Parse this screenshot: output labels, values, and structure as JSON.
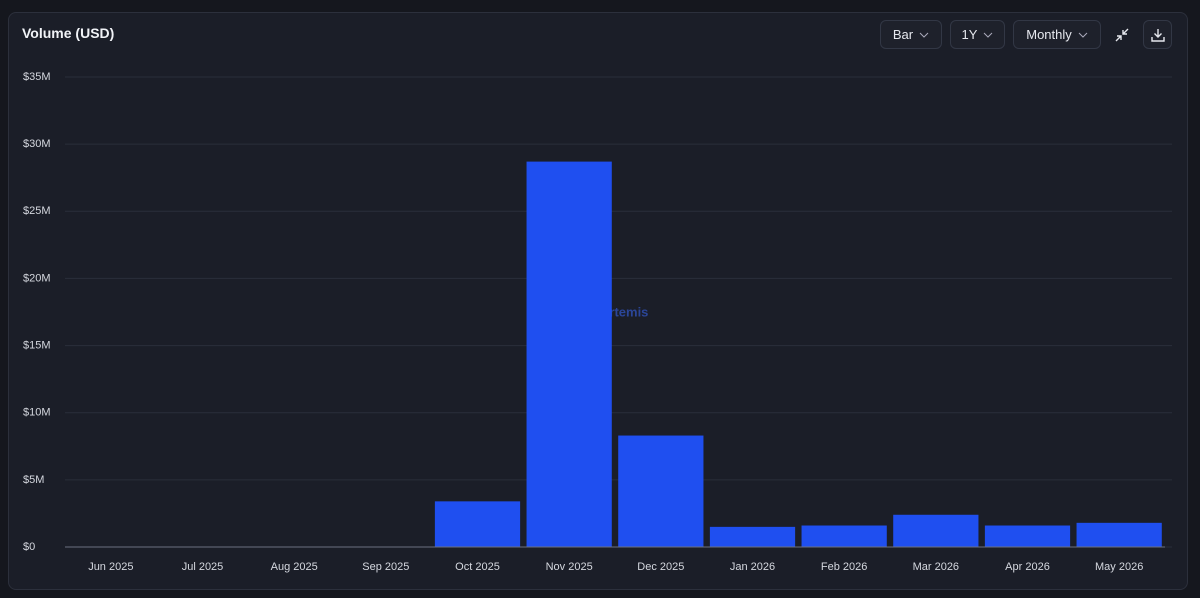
{
  "chart_data": {
    "type": "bar",
    "title": "Volume (USD)",
    "categories": [
      "Jun 2025",
      "Jul 2025",
      "Aug 2025",
      "Sep 2025",
      "Oct 2025",
      "Nov 2025",
      "Dec 2025",
      "Jan 2026",
      "Feb 2026",
      "Mar 2026",
      "Apr 2026",
      "May 2026"
    ],
    "values": [
      0,
      0,
      0,
      0,
      3400000,
      28700000,
      8300000,
      1500000,
      1600000,
      2400000,
      1600000,
      1800000
    ],
    "color": "#1f4ff0",
    "ylim": [
      0,
      35000000
    ],
    "yticks": [
      {
        "value": 0,
        "label": "$0"
      },
      {
        "value": 5000000,
        "label": "$5M"
      },
      {
        "value": 10000000,
        "label": "$10M"
      },
      {
        "value": 15000000,
        "label": "$15M"
      },
      {
        "value": 20000000,
        "label": "$20M"
      },
      {
        "value": 25000000,
        "label": "$25M"
      },
      {
        "value": 30000000,
        "label": "$30M"
      },
      {
        "value": 35000000,
        "label": "$35M"
      }
    ],
    "grid": true,
    "watermark": "Artemis"
  },
  "controls": {
    "chart_type": "Bar",
    "range": "1Y",
    "interval": "Monthly"
  }
}
